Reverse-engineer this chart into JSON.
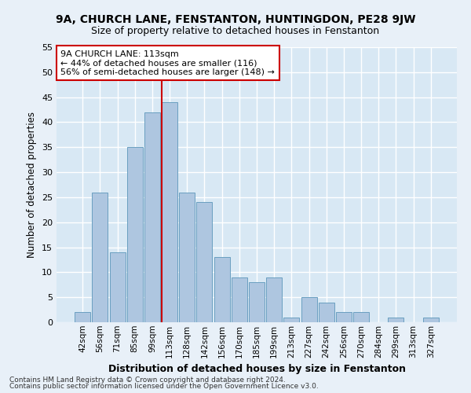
{
  "title": "9A, CHURCH LANE, FENSTANTON, HUNTINGDON, PE28 9JW",
  "subtitle": "Size of property relative to detached houses in Fenstanton",
  "xlabel": "Distribution of detached houses by size in Fenstanton",
  "ylabel": "Number of detached properties",
  "bar_color": "#aec6e0",
  "bar_edge_color": "#6a9fc0",
  "categories": [
    "42sqm",
    "56sqm",
    "71sqm",
    "85sqm",
    "99sqm",
    "113sqm",
    "128sqm",
    "142sqm",
    "156sqm",
    "170sqm",
    "185sqm",
    "199sqm",
    "213sqm",
    "227sqm",
    "242sqm",
    "256sqm",
    "270sqm",
    "284sqm",
    "299sqm",
    "313sqm",
    "327sqm"
  ],
  "values": [
    2,
    26,
    14,
    35,
    42,
    44,
    26,
    24,
    13,
    9,
    8,
    9,
    1,
    5,
    4,
    2,
    2,
    0,
    1,
    0,
    1
  ],
  "ylim": [
    0,
    55
  ],
  "yticks": [
    0,
    5,
    10,
    15,
    20,
    25,
    30,
    35,
    40,
    45,
    50,
    55
  ],
  "property_line_label": "113sqm",
  "property_line_color": "#cc0000",
  "annotation_text": "9A CHURCH LANE: 113sqm\n← 44% of detached houses are smaller (116)\n56% of semi-detached houses are larger (148) →",
  "annotation_box_color": "#cc0000",
  "annotation_box_facecolor": "white",
  "footnote1": "Contains HM Land Registry data © Crown copyright and database right 2024.",
  "footnote2": "Contains public sector information licensed under the Open Government Licence v3.0.",
  "bg_color": "#e8f0f8",
  "plot_bg_color": "#d8e8f4",
  "grid_color": "white"
}
